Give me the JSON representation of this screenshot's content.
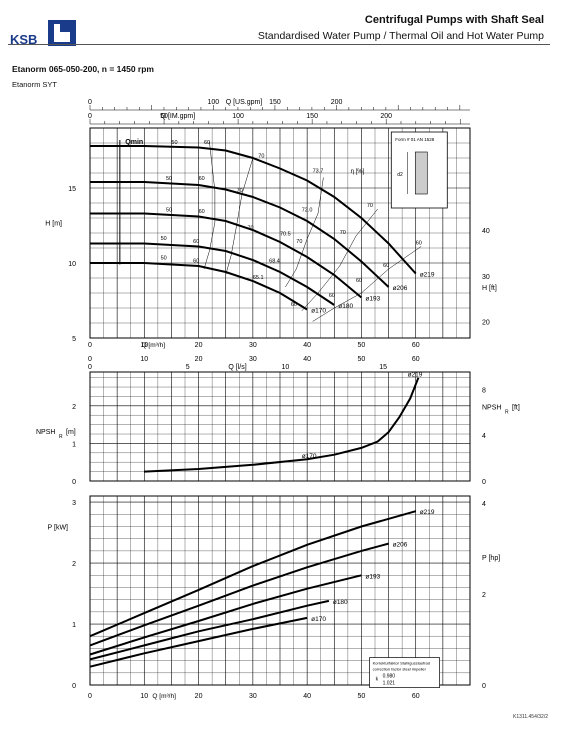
{
  "header": {
    "logo_text": "KSB",
    "title": "Centrifugal Pumps with Shaft Seal",
    "subtitle": "Standardised Water Pump / Thermal Oil and Hot Water Pump"
  },
  "model": "Etanorm 065-050-200, n = 1450 rpm",
  "series_name": "Etanorm SYT",
  "chart_data": [
    {
      "type": "line",
      "ylabel": "H [m]",
      "ylabel_right": "H [ft]",
      "xlabel": "Q [m³/h]",
      "xlabel_top1": "Q [US.gpm]",
      "xlabel_top2": "Q [IM.gpm]",
      "xlim": [
        0,
        70
      ],
      "ylim": [
        5,
        19
      ],
      "x_ticks": [
        0,
        10,
        20,
        30,
        40,
        50,
        60
      ],
      "y_ticks": [
        5,
        10,
        15
      ],
      "y_ticks_right": [
        20,
        30,
        40
      ],
      "top1_ticks": [
        0,
        100,
        150,
        200
      ],
      "top2_ticks": [
        0,
        50,
        100,
        150,
        200
      ],
      "qmin_label": "Qmin",
      "eta_label": "η [%]",
      "inset": {
        "label": "Form # 01 AN 1528",
        "dim": "d2"
      },
      "series": [
        {
          "name": "ø219",
          "x": [
            0,
            10,
            20,
            25,
            30,
            35,
            40,
            45,
            50,
            55,
            60
          ],
          "y": [
            17.8,
            17.8,
            17.7,
            17.5,
            17.0,
            16.3,
            15.5,
            14.4,
            13.0,
            11.3,
            9.3
          ]
        },
        {
          "name": "ø206",
          "x": [
            0,
            10,
            20,
            25,
            30,
            35,
            40,
            45,
            50,
            55
          ],
          "y": [
            15.4,
            15.4,
            15.2,
            14.9,
            14.4,
            13.7,
            12.8,
            11.6,
            10.1,
            8.4
          ]
        },
        {
          "name": "ø193",
          "x": [
            0,
            10,
            20,
            25,
            30,
            35,
            40,
            45,
            50
          ],
          "y": [
            13.3,
            13.3,
            13.1,
            12.8,
            12.2,
            11.4,
            10.4,
            9.2,
            7.7
          ]
        },
        {
          "name": "ø180",
          "x": [
            0,
            10,
            20,
            25,
            30,
            35,
            40,
            45
          ],
          "y": [
            11.3,
            11.3,
            11.1,
            10.8,
            10.2,
            9.4,
            8.4,
            7.2
          ]
        },
        {
          "name": "ø170",
          "x": [
            0,
            10,
            20,
            25,
            30,
            35,
            40
          ],
          "y": [
            10.0,
            10.0,
            9.8,
            9.4,
            8.8,
            8.0,
            6.9
          ]
        }
      ],
      "efficiency_labels": [
        {
          "text": "50",
          "x": 15,
          "y": 17.8
        },
        {
          "text": "60",
          "x": 21,
          "y": 17.8
        },
        {
          "text": "70",
          "x": 31,
          "y": 16.9
        },
        {
          "text": "73.7",
          "x": 41,
          "y": 15.9
        },
        {
          "text": "70",
          "x": 51,
          "y": 13.6
        },
        {
          "text": "60",
          "x": 60,
          "y": 11.1
        },
        {
          "text": "50",
          "x": 14,
          "y": 15.4
        },
        {
          "text": "60",
          "x": 20,
          "y": 15.4
        },
        {
          "text": "70",
          "x": 27,
          "y": 14.6
        },
        {
          "text": "72.0",
          "x": 39,
          "y": 13.3
        },
        {
          "text": "70",
          "x": 46,
          "y": 11.8
        },
        {
          "text": "60",
          "x": 54,
          "y": 9.6
        },
        {
          "text": "50",
          "x": 14,
          "y": 13.3
        },
        {
          "text": "60",
          "x": 20,
          "y": 13.2
        },
        {
          "text": "70",
          "x": 29,
          "y": 12.1
        },
        {
          "text": "70.5",
          "x": 35,
          "y": 11.7
        },
        {
          "text": "70",
          "x": 38,
          "y": 11.2
        },
        {
          "text": "60",
          "x": 49,
          "y": 8.6
        },
        {
          "text": "50",
          "x": 13,
          "y": 11.4
        },
        {
          "text": "60",
          "x": 19,
          "y": 11.2
        },
        {
          "text": "68.4",
          "x": 33,
          "y": 9.9
        },
        {
          "text": "60",
          "x": 44,
          "y": 7.6
        },
        {
          "text": "50",
          "x": 13,
          "y": 10.1
        },
        {
          "text": "60",
          "x": 19,
          "y": 9.9
        },
        {
          "text": "65.1",
          "x": 30,
          "y": 8.8
        },
        {
          "text": "60",
          "x": 37,
          "y": 7.0
        }
      ]
    },
    {
      "type": "line",
      "ylabel": "NPSH",
      "ylabel_sub": "R",
      "ylabel_unit": "[m]",
      "ylabel_right": "NPSH",
      "ylabel_right_sub": "R",
      "ylabel_right_unit": "[ft]",
      "xlabel_top": "Q [l/s]",
      "xlim": [
        0,
        70
      ],
      "ylim": [
        0,
        2.9
      ],
      "top_ticks": [
        0,
        5,
        10,
        15
      ],
      "y_ticks": [
        0,
        1,
        2
      ],
      "y_ticks_right": [
        0,
        4,
        8
      ],
      "series": [
        {
          "name": "ø170",
          "x": [
            10,
            20,
            30,
            40,
            45,
            50,
            53,
            55,
            57,
            59,
            60.5
          ],
          "y": [
            0.25,
            0.32,
            0.43,
            0.58,
            0.7,
            0.88,
            1.05,
            1.3,
            1.7,
            2.2,
            2.75
          ]
        }
      ],
      "end_label": "ø219"
    },
    {
      "type": "line",
      "ylabel": "P [kW]",
      "ylabel_right": "P [hp]",
      "xlabel": "Q [m³/h]",
      "xlim": [
        0,
        70
      ],
      "ylim": [
        0,
        3.1
      ],
      "x_ticks": [
        0,
        10,
        20,
        30,
        40,
        50,
        60
      ],
      "y_ticks": [
        0,
        1,
        2,
        3
      ],
      "y_ticks_right": [
        0,
        2,
        4
      ],
      "series": [
        {
          "name": "ø219",
          "x": [
            0,
            10,
            20,
            30,
            40,
            50,
            60
          ],
          "y": [
            0.8,
            1.18,
            1.56,
            1.95,
            2.3,
            2.6,
            2.85
          ]
        },
        {
          "name": "ø206",
          "x": [
            0,
            10,
            20,
            30,
            40,
            50,
            55
          ],
          "y": [
            0.65,
            0.98,
            1.3,
            1.63,
            1.93,
            2.2,
            2.32
          ]
        },
        {
          "name": "ø193",
          "x": [
            0,
            10,
            20,
            30,
            40,
            50
          ],
          "y": [
            0.5,
            0.78,
            1.05,
            1.33,
            1.58,
            1.8
          ]
        },
        {
          "name": "ø180",
          "x": [
            0,
            10,
            20,
            30,
            40,
            44
          ],
          "y": [
            0.42,
            0.65,
            0.88,
            1.08,
            1.3,
            1.38
          ]
        },
        {
          "name": "ø170",
          "x": [
            0,
            10,
            20,
            30,
            40
          ],
          "y": [
            0.3,
            0.52,
            0.72,
            0.92,
            1.1
          ]
        }
      ],
      "note": {
        "line1": "Korrekturfaktor Stahlgusslaufrad",
        "line2": "correction factor steel impeller",
        "f1": "0.980",
        "f2": "1.021",
        "k": "k"
      }
    }
  ],
  "reference": "K1311.454/32/2"
}
